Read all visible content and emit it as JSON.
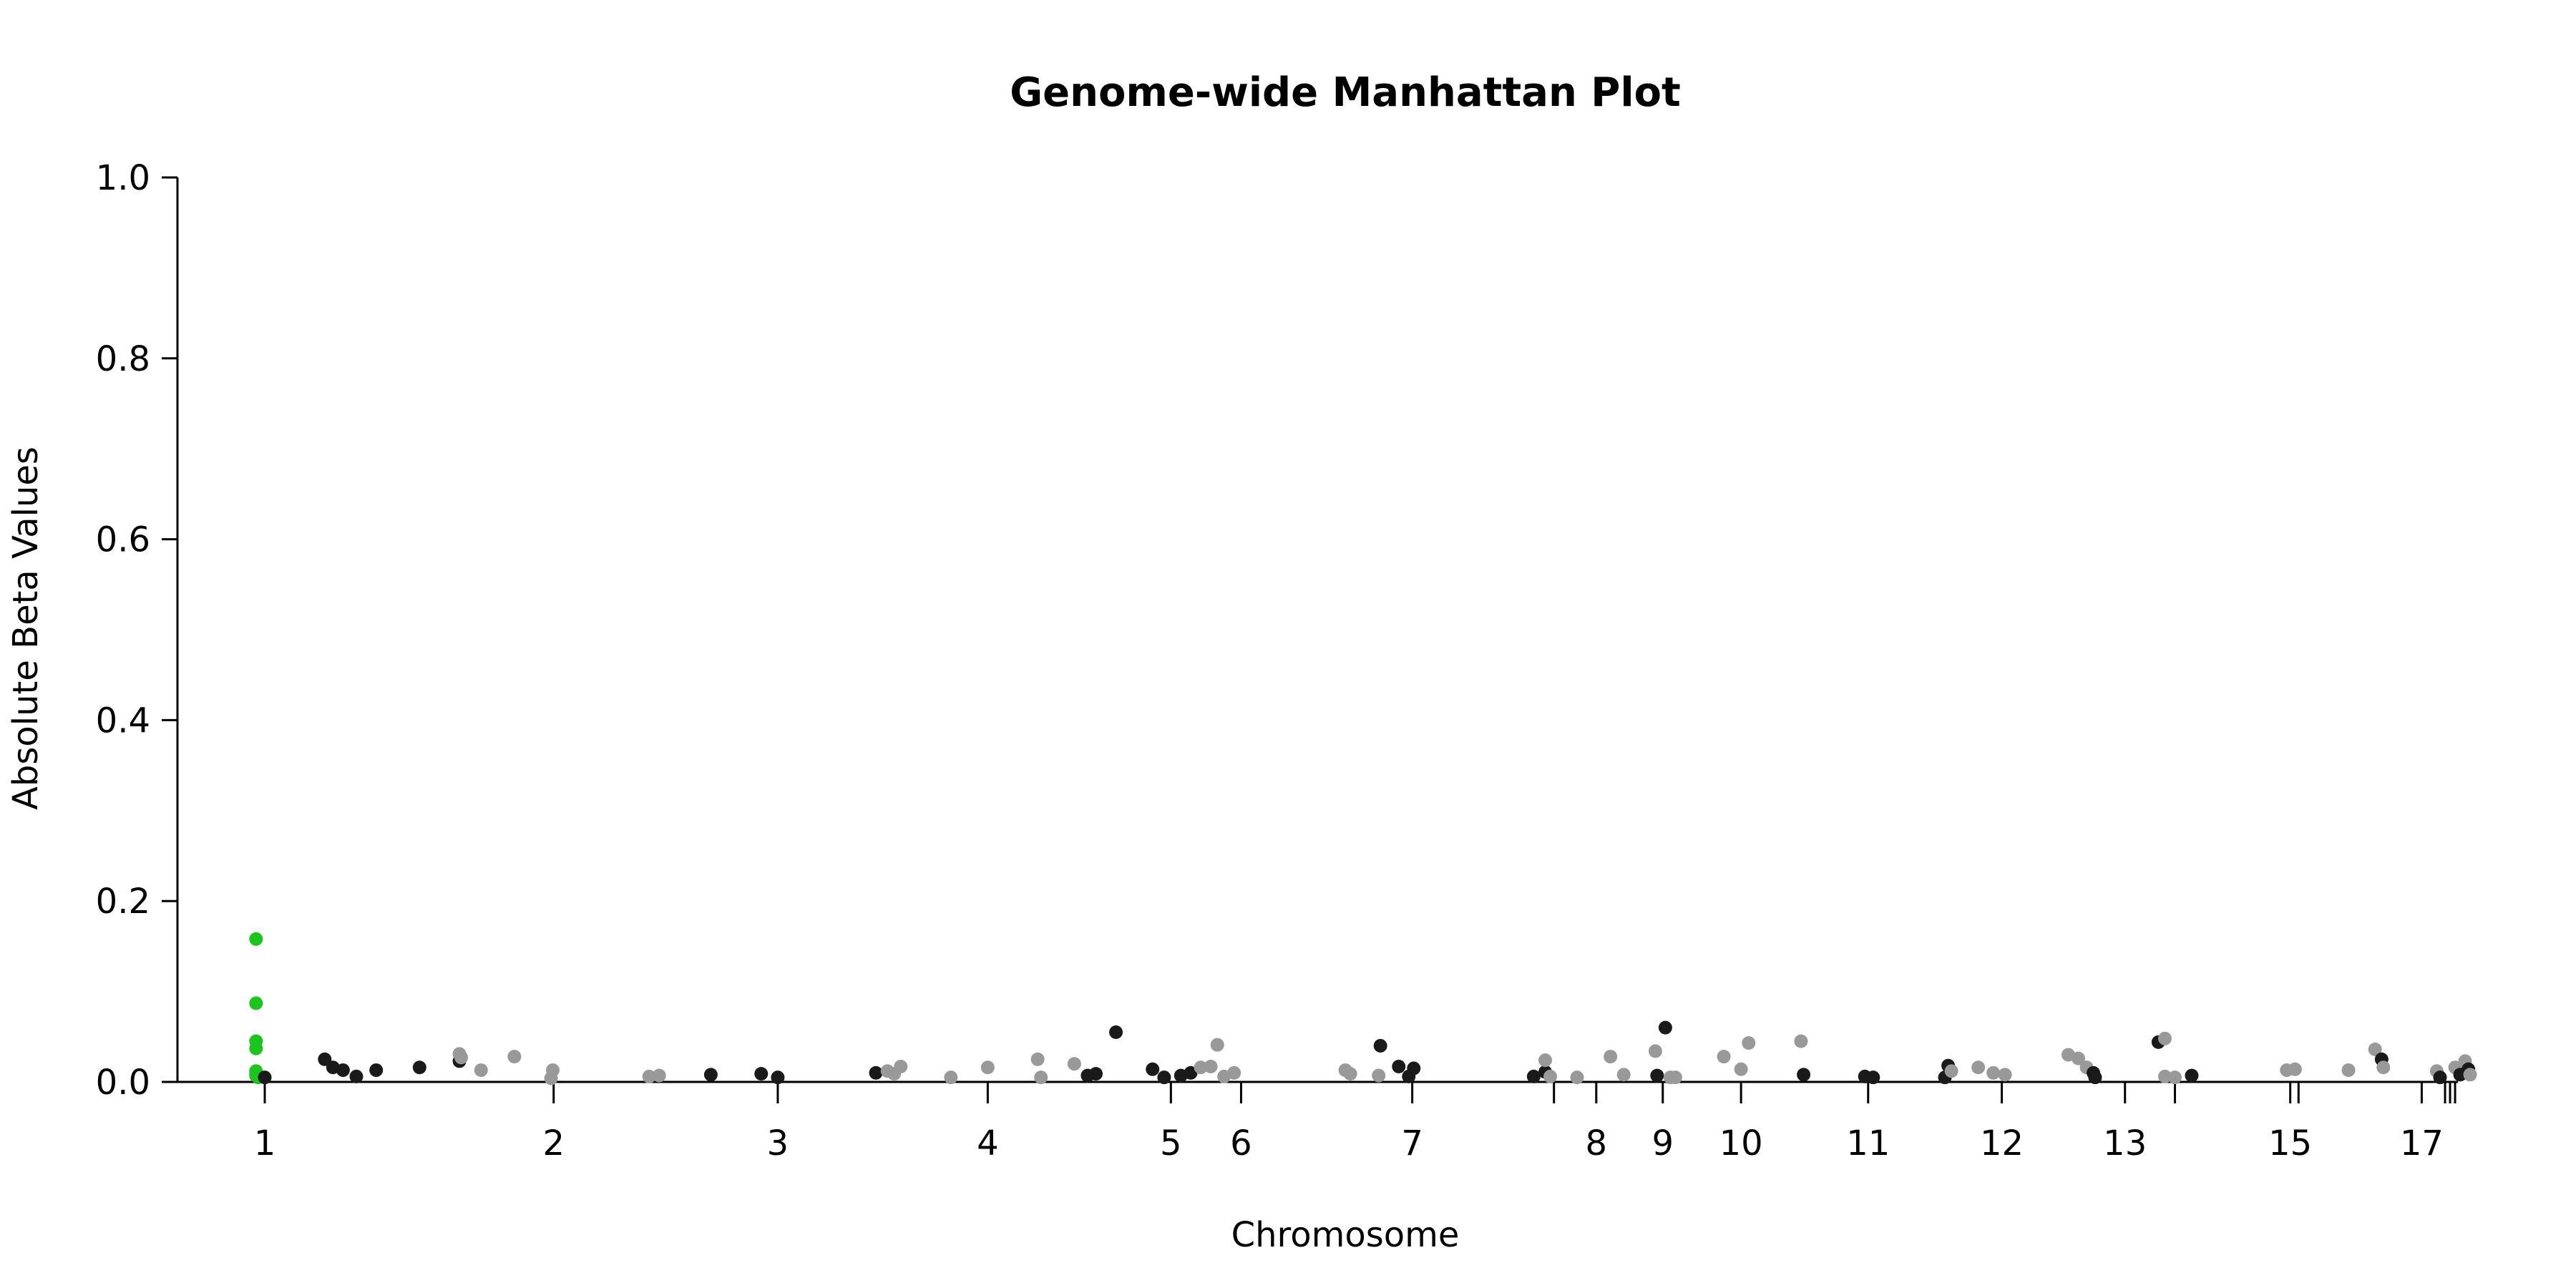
{
  "chart_data": {
    "type": "scatter",
    "title": "Genome-wide Manhattan Plot",
    "xlabel": "Chromosome",
    "ylabel": "Absolute Beta Values",
    "ylim": [
      0,
      1
    ],
    "yticks": [
      "0.0",
      "0.2",
      "0.4",
      "0.6",
      "0.8",
      "1.0"
    ],
    "grid": false,
    "legend": "none",
    "colors": {
      "odd": "#1a1a1a",
      "even": "#999999",
      "highlight": "#1ec41e"
    },
    "chromosome_ticks": [
      {
        "label": "1",
        "pos": 0.0
      },
      {
        "label": "2",
        "pos": 0.1325
      },
      {
        "label": "3",
        "pos": 0.2353
      },
      {
        "label": "4",
        "pos": 0.3316
      },
      {
        "label": "5",
        "pos": 0.4156
      },
      {
        "label": "6",
        "pos": 0.4478
      },
      {
        "label": "7",
        "pos": 0.5263
      },
      {
        "label": "",
        "pos": 0.5913
      },
      {
        "label": "8",
        "pos": 0.6107
      },
      {
        "label": "9",
        "pos": 0.6412
      },
      {
        "label": "10",
        "pos": 0.6771
      },
      {
        "label": "11",
        "pos": 0.7354
      },
      {
        "label": "12",
        "pos": 0.7967
      },
      {
        "label": "13",
        "pos": 0.8532
      },
      {
        "label": "",
        "pos": 0.8761
      },
      {
        "label": "15",
        "pos": 0.929
      },
      {
        "label": "",
        "pos": 0.9328
      },
      {
        "label": "17",
        "pos": 0.9893
      },
      {
        "label": "",
        "pos": 1.0
      },
      {
        "label": "",
        "pos": 1.0023
      },
      {
        "label": "",
        "pos": 1.0046
      }
    ],
    "points": [
      {
        "pos": -0.004,
        "y": 0.158,
        "group": "highlight"
      },
      {
        "pos": -0.004,
        "y": 0.087,
        "group": "highlight"
      },
      {
        "pos": -0.004,
        "y": 0.045,
        "group": "highlight"
      },
      {
        "pos": -0.004,
        "y": 0.037,
        "group": "highlight"
      },
      {
        "pos": -0.004,
        "y": 0.012,
        "group": "highlight"
      },
      {
        "pos": -0.004,
        "y": 0.009,
        "group": "highlight"
      },
      {
        "pos": -0.004,
        "y": 0.007,
        "group": "highlight"
      },
      {
        "pos": -0.003,
        "y": 0.005,
        "group": "highlight"
      },
      {
        "pos": 0.0,
        "y": 0.005,
        "group": "odd"
      },
      {
        "pos": 0.0275,
        "y": 0.025,
        "group": "odd"
      },
      {
        "pos": 0.0313,
        "y": 0.016,
        "group": "odd"
      },
      {
        "pos": 0.0359,
        "y": 0.013,
        "group": "odd"
      },
      {
        "pos": 0.042,
        "y": 0.006,
        "group": "odd"
      },
      {
        "pos": 0.0511,
        "y": 0.013,
        "group": "odd"
      },
      {
        "pos": 0.071,
        "y": 0.016,
        "group": "odd"
      },
      {
        "pos": 0.0893,
        "y": 0.023,
        "group": "odd"
      },
      {
        "pos": 0.0893,
        "y": 0.031,
        "group": "even"
      },
      {
        "pos": 0.0901,
        "y": 0.027,
        "group": "even"
      },
      {
        "pos": 0.0992,
        "y": 0.013,
        "group": "even"
      },
      {
        "pos": 0.1145,
        "y": 0.028,
        "group": "even"
      },
      {
        "pos": 0.1313,
        "y": 0.004,
        "group": "even"
      },
      {
        "pos": 0.1321,
        "y": 0.013,
        "group": "even"
      },
      {
        "pos": 0.1763,
        "y": 0.006,
        "group": "even"
      },
      {
        "pos": 0.1809,
        "y": 0.007,
        "group": "even"
      },
      {
        "pos": 0.2046,
        "y": 0.008,
        "group": "odd"
      },
      {
        "pos": 0.2277,
        "y": 0.009,
        "group": "odd"
      },
      {
        "pos": 0.2353,
        "y": 0.005,
        "group": "odd"
      },
      {
        "pos": 0.2803,
        "y": 0.01,
        "group": "odd"
      },
      {
        "pos": 0.2856,
        "y": 0.012,
        "group": "even"
      },
      {
        "pos": 0.2887,
        "y": 0.009,
        "group": "even"
      },
      {
        "pos": 0.2917,
        "y": 0.017,
        "group": "even"
      },
      {
        "pos": 0.3147,
        "y": 0.005,
        "group": "even"
      },
      {
        "pos": 0.3316,
        "y": 0.016,
        "group": "even"
      },
      {
        "pos": 0.3545,
        "y": 0.025,
        "group": "even"
      },
      {
        "pos": 0.356,
        "y": 0.005,
        "group": "even"
      },
      {
        "pos": 0.3713,
        "y": 0.02,
        "group": "even"
      },
      {
        "pos": 0.3774,
        "y": 0.007,
        "group": "odd"
      },
      {
        "pos": 0.3812,
        "y": 0.009,
        "group": "odd"
      },
      {
        "pos": 0.3904,
        "y": 0.055,
        "group": "odd"
      },
      {
        "pos": 0.4072,
        "y": 0.014,
        "group": "odd"
      },
      {
        "pos": 0.4125,
        "y": 0.005,
        "group": "odd"
      },
      {
        "pos": 0.4202,
        "y": 0.007,
        "group": "odd"
      },
      {
        "pos": 0.4247,
        "y": 0.01,
        "group": "odd"
      },
      {
        "pos": 0.4293,
        "y": 0.016,
        "group": "even"
      },
      {
        "pos": 0.4339,
        "y": 0.017,
        "group": "even"
      },
      {
        "pos": 0.4369,
        "y": 0.041,
        "group": "even"
      },
      {
        "pos": 0.44,
        "y": 0.006,
        "group": "even"
      },
      {
        "pos": 0.4446,
        "y": 0.01,
        "group": "even"
      },
      {
        "pos": 0.4956,
        "y": 0.013,
        "group": "even"
      },
      {
        "pos": 0.4979,
        "y": 0.009,
        "group": "even"
      },
      {
        "pos": 0.5109,
        "y": 0.007,
        "group": "even"
      },
      {
        "pos": 0.5117,
        "y": 0.04,
        "group": "odd"
      },
      {
        "pos": 0.5201,
        "y": 0.017,
        "group": "odd"
      },
      {
        "pos": 0.5247,
        "y": 0.006,
        "group": "odd"
      },
      {
        "pos": 0.527,
        "y": 0.015,
        "group": "odd"
      },
      {
        "pos": 0.582,
        "y": 0.006,
        "group": "odd"
      },
      {
        "pos": 0.5873,
        "y": 0.011,
        "group": "odd"
      },
      {
        "pos": 0.5873,
        "y": 0.024,
        "group": "even"
      },
      {
        "pos": 0.5896,
        "y": 0.006,
        "group": "even"
      },
      {
        "pos": 0.6019,
        "y": 0.005,
        "group": "even"
      },
      {
        "pos": 0.6172,
        "y": 0.028,
        "group": "even"
      },
      {
        "pos": 0.6233,
        "y": 0.008,
        "group": "even"
      },
      {
        "pos": 0.6378,
        "y": 0.034,
        "group": "even"
      },
      {
        "pos": 0.6386,
        "y": 0.007,
        "group": "odd"
      },
      {
        "pos": 0.6424,
        "y": 0.06,
        "group": "odd"
      },
      {
        "pos": 0.6447,
        "y": 0.005,
        "group": "even"
      },
      {
        "pos": 0.647,
        "y": 0.005,
        "group": "even"
      },
      {
        "pos": 0.6692,
        "y": 0.028,
        "group": "even"
      },
      {
        "pos": 0.6771,
        "y": 0.014,
        "group": "even"
      },
      {
        "pos": 0.6806,
        "y": 0.043,
        "group": "even"
      },
      {
        "pos": 0.7046,
        "y": 0.045,
        "group": "even"
      },
      {
        "pos": 0.7058,
        "y": 0.008,
        "group": "odd"
      },
      {
        "pos": 0.7339,
        "y": 0.006,
        "group": "odd"
      },
      {
        "pos": 0.7377,
        "y": 0.005,
        "group": "odd"
      },
      {
        "pos": 0.7706,
        "y": 0.005,
        "group": "odd"
      },
      {
        "pos": 0.7721,
        "y": 0.018,
        "group": "odd"
      },
      {
        "pos": 0.7736,
        "y": 0.012,
        "group": "even"
      },
      {
        "pos": 0.7859,
        "y": 0.016,
        "group": "even"
      },
      {
        "pos": 0.7928,
        "y": 0.01,
        "group": "even"
      },
      {
        "pos": 0.7982,
        "y": 0.008,
        "group": "even"
      },
      {
        "pos": 0.8272,
        "y": 0.03,
        "group": "even"
      },
      {
        "pos": 0.8318,
        "y": 0.026,
        "group": "even"
      },
      {
        "pos": 0.8356,
        "y": 0.016,
        "group": "even"
      },
      {
        "pos": 0.8387,
        "y": 0.01,
        "group": "odd"
      },
      {
        "pos": 0.8395,
        "y": 0.005,
        "group": "odd"
      },
      {
        "pos": 0.8685,
        "y": 0.044,
        "group": "odd"
      },
      {
        "pos": 0.8715,
        "y": 0.048,
        "group": "even"
      },
      {
        "pos": 0.8715,
        "y": 0.006,
        "group": "even"
      },
      {
        "pos": 0.8761,
        "y": 0.005,
        "group": "even"
      },
      {
        "pos": 0.8838,
        "y": 0.007,
        "group": "odd"
      },
      {
        "pos": 0.9274,
        "y": 0.013,
        "group": "even"
      },
      {
        "pos": 0.9312,
        "y": 0.014,
        "group": "even"
      },
      {
        "pos": 0.9557,
        "y": 0.013,
        "group": "even"
      },
      {
        "pos": 0.9679,
        "y": 0.036,
        "group": "even"
      },
      {
        "pos": 0.9709,
        "y": 0.025,
        "group": "odd"
      },
      {
        "pos": 0.9717,
        "y": 0.016,
        "group": "even"
      },
      {
        "pos": 0.9962,
        "y": 0.012,
        "group": "even"
      },
      {
        "pos": 0.9977,
        "y": 0.005,
        "group": "odd"
      },
      {
        "pos": 1.0046,
        "y": 0.016,
        "group": "even"
      },
      {
        "pos": 1.0069,
        "y": 0.008,
        "group": "odd"
      },
      {
        "pos": 1.0092,
        "y": 0.023,
        "group": "even"
      },
      {
        "pos": 1.0107,
        "y": 0.014,
        "group": "odd"
      },
      {
        "pos": 1.0115,
        "y": 0.008,
        "group": "even"
      }
    ]
  }
}
